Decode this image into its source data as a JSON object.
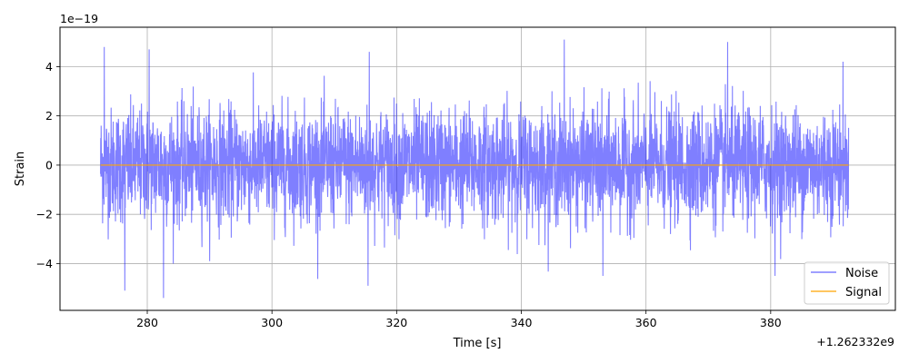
{
  "chart_data": {
    "type": "line",
    "title": "",
    "xlabel": "Time [s]",
    "ylabel": "Strain",
    "x_offset_label": "+1.262332e9",
    "y_multiplier_label": "1e−19",
    "xlim": [
      266,
      400
    ],
    "ylim": [
      -5.9,
      5.6
    ],
    "x_ticks": [
      280,
      300,
      320,
      340,
      360,
      380
    ],
    "x_tick_labels": [
      "280",
      "300",
      "320",
      "340",
      "360",
      "380"
    ],
    "y_ticks": [
      -4,
      -2,
      0,
      2,
      4
    ],
    "y_tick_labels": [
      "−4",
      "−2",
      "0",
      "2",
      "4"
    ],
    "grid": true,
    "legend_position": "bottom-right",
    "series": [
      {
        "name": "Noise",
        "color": "#0000ff",
        "alpha": 0.5,
        "x_range": [
          272.5,
          392.5
        ],
        "approx_amplitude_range": [
          -5.4,
          5.1
        ],
        "notable_peaks": [
          {
            "x": 273.1,
            "y": 4.8
          },
          {
            "x": 276.4,
            "y": -5.1
          },
          {
            "x": 280.3,
            "y": 4.7
          },
          {
            "x": 282.6,
            "y": -5.4
          },
          {
            "x": 315.6,
            "y": 4.6
          },
          {
            "x": 315.4,
            "y": -4.9
          },
          {
            "x": 346.9,
            "y": 5.1
          },
          {
            "x": 353.1,
            "y": -4.5
          },
          {
            "x": 373.1,
            "y": 5.0
          },
          {
            "x": 380.7,
            "y": -4.5
          },
          {
            "x": 391.6,
            "y": 4.2
          }
        ]
      },
      {
        "name": "Signal",
        "color": "#ffa500",
        "x_range": [
          272.5,
          392.5
        ],
        "values_approx": 0.0
      }
    ]
  }
}
